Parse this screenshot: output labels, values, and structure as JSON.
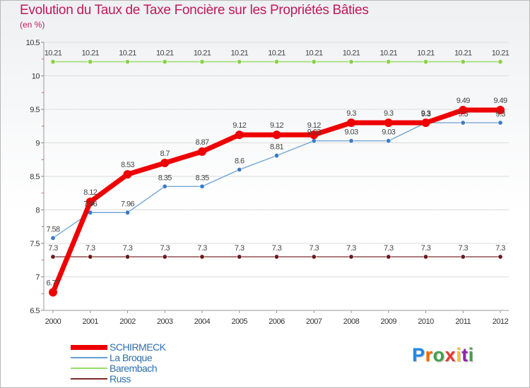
{
  "chart_data": {
    "type": "line",
    "title": "Evolution du Taux de Taxe Foncière sur les Propriétés Bâties",
    "unit_label": "(en %)",
    "categories": [
      "2000",
      "2001",
      "2002",
      "2003",
      "2004",
      "2005",
      "2006",
      "2007",
      "2008",
      "2009",
      "2010",
      "2011",
      "2012"
    ],
    "ylim": [
      6.5,
      10.5
    ],
    "yticks": [
      6.5,
      7,
      7.5,
      8,
      8.5,
      9,
      9.5,
      10,
      10.5
    ],
    "ytick_labels": [
      "6.5",
      "7",
      "7.5",
      "8",
      "8.5",
      "9",
      "9.5",
      "10",
      "10.5"
    ],
    "series": [
      {
        "name": "SCHIRMECK",
        "color": "#ee0000",
        "values": [
          6.77,
          8.12,
          8.53,
          8.7,
          8.87,
          9.12,
          9.12,
          9.12,
          9.3,
          9.3,
          9.3,
          9.49,
          9.49
        ],
        "labels": [
          "6.77",
          "8.12",
          "8.53",
          "8.7",
          "8.87",
          "9.12",
          "9.12",
          "9.12",
          "9.3",
          "9.3",
          "9.3",
          "9.49",
          "9.49"
        ]
      },
      {
        "name": "La Broque",
        "color": "#6a9fd0",
        "values": [
          7.58,
          7.96,
          7.96,
          8.35,
          8.35,
          8.6,
          8.81,
          9.03,
          9.03,
          9.03,
          9.3,
          9.3,
          9.3
        ],
        "labels": [
          "7.58",
          "7.96",
          "7.96",
          "8.35",
          "8.35",
          "8.6",
          "8.81",
          "9.03",
          "9.03",
          "9.03",
          "9.3",
          "9.3",
          "9.3"
        ]
      },
      {
        "name": "Barembach",
        "color": "#99dd66",
        "values": [
          10.21,
          10.21,
          10.21,
          10.21,
          10.21,
          10.21,
          10.21,
          10.21,
          10.21,
          10.21,
          10.21,
          10.21,
          10.21
        ],
        "labels": [
          "10.21",
          "10.21",
          "10.21",
          "10.21",
          "10.21",
          "10.21",
          "10.21",
          "10.21",
          "10.21",
          "10.21",
          "10.21",
          "10.21",
          "10.21"
        ]
      },
      {
        "name": "Russ",
        "color": "#7a2a2a",
        "values": [
          7.3,
          7.3,
          7.3,
          7.3,
          7.3,
          7.3,
          7.3,
          7.3,
          7.3,
          7.3,
          7.3,
          7.3,
          7.3
        ],
        "labels": [
          "7.3",
          "7.3",
          "7.3",
          "7.3",
          "7.3",
          "7.3",
          "7.3",
          "7.3",
          "7.3",
          "7.3",
          "7.3",
          "7.3",
          "7.3"
        ]
      }
    ]
  },
  "brand": {
    "logo_letters": [
      "P",
      "r",
      "o",
      "x",
      "i",
      "t",
      "i"
    ],
    "logo_colors": [
      "#1e88e5",
      "#ef6c00",
      "#43a047",
      "#e53935",
      "#fbc02d",
      "#8e24aa",
      "#43a047"
    ]
  }
}
